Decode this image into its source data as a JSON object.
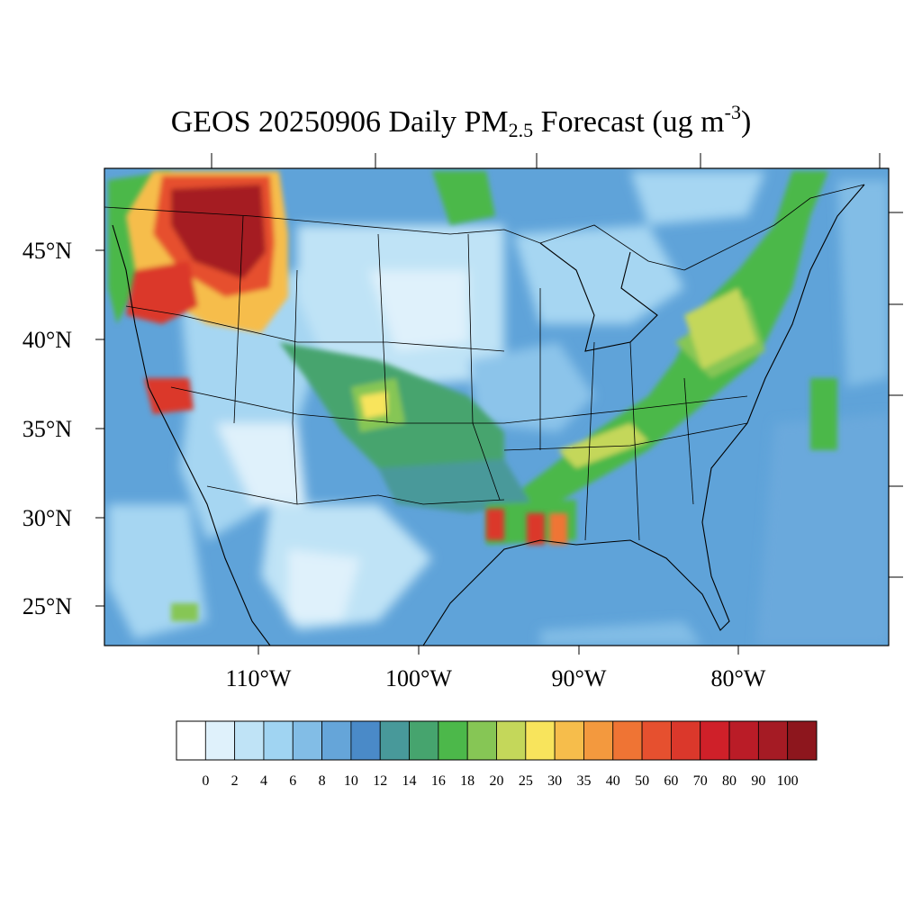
{
  "map": {
    "title_main": "GEOS 20250906 Daily PM",
    "title_sub": "2.5",
    "title_after_sub": " Forecast (ug m",
    "title_sup": "-3",
    "title_end": ")",
    "lat_labels": [
      "45°N",
      "40°N",
      "35°N",
      "30°N",
      "25°N"
    ],
    "lon_labels": [
      "110°W",
      "100°W",
      "90°W",
      "80°W"
    ],
    "background_color": "#5fa3d9"
  },
  "colorbar": {
    "labels": [
      "0",
      "2",
      "4",
      "6",
      "8",
      "10",
      "12",
      "14",
      "16",
      "18",
      "20",
      "25",
      "30",
      "35",
      "40",
      "50",
      "60",
      "70",
      "80",
      "90",
      "100"
    ],
    "colors": [
      "#ffffff",
      "#dff1fb",
      "#bfe3f6",
      "#a0d4f2",
      "#82bde6",
      "#65a5d9",
      "#4a8ac8",
      "#48999a",
      "#46a46e",
      "#4cb84a",
      "#86c655",
      "#c4d75a",
      "#f8e45c",
      "#f6bd4b",
      "#f3993e",
      "#ef7434",
      "#e6502f",
      "#db382b",
      "#cf2029",
      "#ba1c27",
      "#a51b24",
      "#8d161d"
    ]
  }
}
